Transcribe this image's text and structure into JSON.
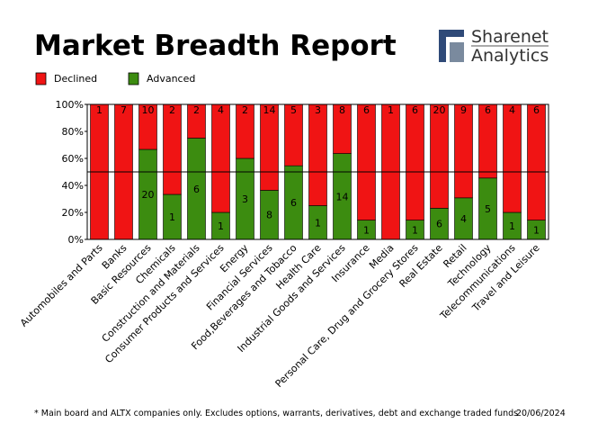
{
  "logo": {
    "name": "Sharenet",
    "tagline": "Analytics"
  },
  "chart_data": {
    "type": "bar",
    "stack": "percent",
    "title": "Market Breadth Report",
    "categories": [
      "Automobiles and Parts",
      "Banks",
      "Basic Resources",
      "Chemicals",
      "Construction and Materials",
      "Consumer Products and Services",
      "Energy",
      "Financial Services",
      "Food,Beverages and Tobacco",
      "Health Care",
      "Industrial Goods and Services",
      "Insurance",
      "Media",
      "Personal Care, Drug and Grocery Stores",
      "Real Estate",
      "Retail",
      "Technology",
      "Telecommunications",
      "Travel and Leisure"
    ],
    "series": [
      {
        "name": "Declined",
        "color": "#f01414",
        "values": [
          1,
          7,
          10,
          2,
          2,
          4,
          2,
          14,
          5,
          3,
          8,
          6,
          1,
          6,
          20,
          9,
          6,
          4,
          6
        ]
      },
      {
        "name": "Advanced",
        "color": "#3c8c10",
        "values": [
          0,
          0,
          20,
          1,
          6,
          1,
          3,
          8,
          6,
          1,
          14,
          1,
          0,
          1,
          6,
          4,
          5,
          1,
          1
        ]
      }
    ],
    "ylim": [
      0,
      100
    ],
    "yticks": [
      {
        "value": 0,
        "label": "0%"
      },
      {
        "value": 20,
        "label": "20%"
      },
      {
        "value": 40,
        "label": "40%"
      },
      {
        "value": 60,
        "label": "60%"
      },
      {
        "value": 80,
        "label": "80%"
      },
      {
        "value": 100,
        "label": "100%"
      }
    ],
    "hline": 50,
    "footnote": "* Main board and ALTX companies only. Excludes options, warrants, derivatives, debt and exchange traded funds",
    "date": "20/06/2024"
  }
}
